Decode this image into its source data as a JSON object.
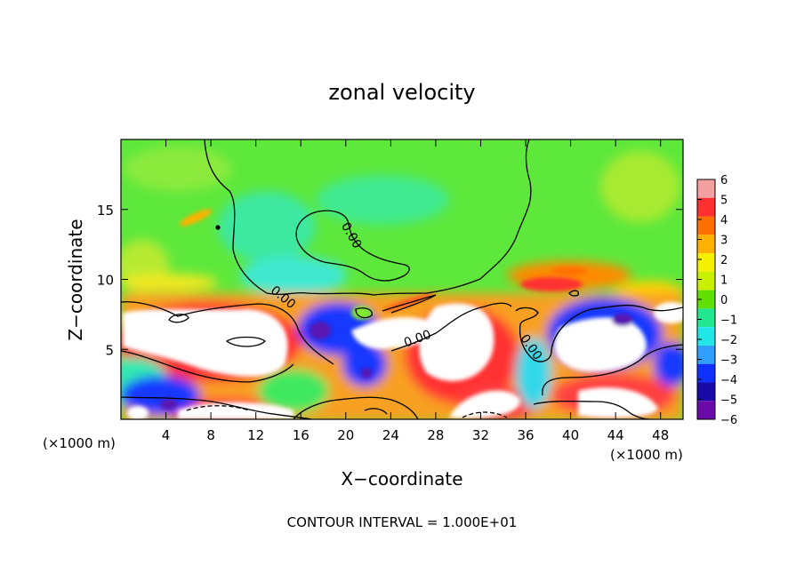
{
  "chart_data": {
    "type": "heatmap",
    "title": "zonal velocity",
    "xlabel": "X−coordinate",
    "ylabel": "Z−coordinate",
    "x_unit_left": "(×1000 m)",
    "x_unit_right": "(×1000 m)",
    "footer": "CONTOUR INTERVAL = 1.000E+01",
    "xlim": [
      0,
      50
    ],
    "ylim": [
      0,
      20
    ],
    "x_ticks": [
      4,
      8,
      12,
      16,
      20,
      24,
      28,
      32,
      36,
      40,
      44,
      48
    ],
    "y_ticks": [
      5,
      10,
      15
    ],
    "colorbar": {
      "ticks": [
        6,
        5,
        4,
        3,
        2,
        1,
        0,
        -1,
        -2,
        -3,
        -4,
        -5,
        -6
      ],
      "colors": [
        "#f4a0a0",
        "#ff3030",
        "#ff7000",
        "#ffb000",
        "#f5f000",
        "#c8f000",
        "#60e000",
        "#20e890",
        "#20e8e8",
        "#30a0ff",
        "#1030ff",
        "#1a0aa8",
        "#6a0aa8"
      ]
    },
    "contour_labels": [
      {
        "text": "0.00",
        "x": 14.2,
        "z": 8.5
      },
      {
        "text": "0.00",
        "x": 20.2,
        "z": 13.0
      },
      {
        "text": "0.00",
        "x": 26.5,
        "z": 5.5
      },
      {
        "text": "0.00",
        "x": 36.2,
        "z": 5.0
      }
    ],
    "grid": false,
    "legend": "right"
  }
}
